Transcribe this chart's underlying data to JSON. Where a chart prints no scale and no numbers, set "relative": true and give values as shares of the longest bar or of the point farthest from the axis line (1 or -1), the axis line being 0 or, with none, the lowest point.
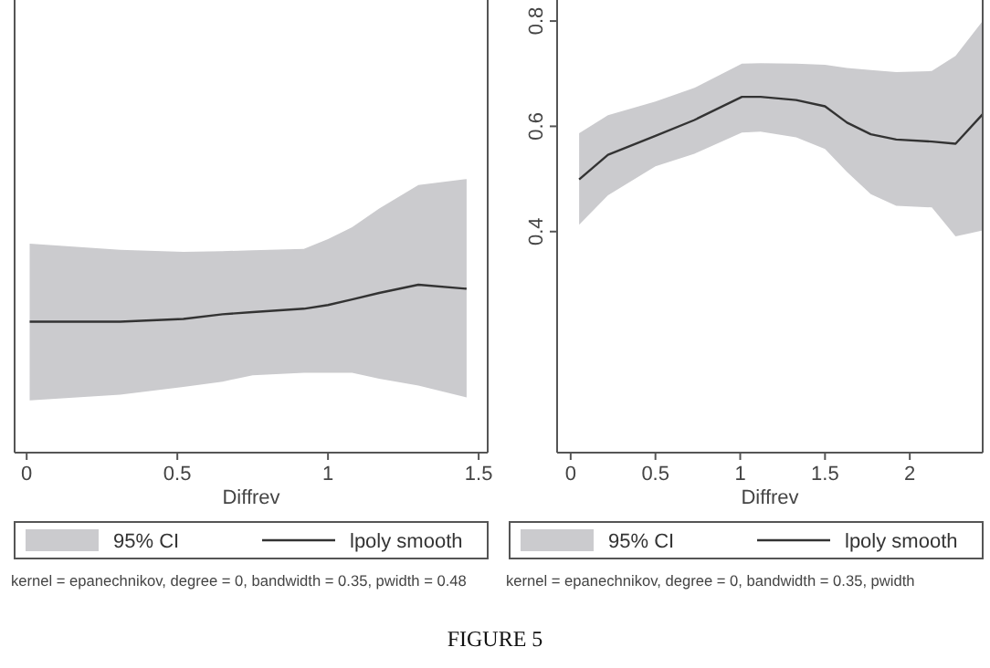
{
  "chart_data": [
    {
      "type": "line",
      "xlabel": "Diffrev",
      "relative": true,
      "tick_labels": "x",
      "xlim": [
        -0.04,
        1.53
      ],
      "xticks": [
        0,
        0.5,
        1,
        1.5
      ],
      "legend": "bottom",
      "x": [
        0.01,
        0.31,
        0.52,
        0.65,
        0.75,
        0.92,
        1.0,
        1.08,
        1.17,
        1.3,
        1.46
      ],
      "series": [
        {
          "name": "lpoly smooth",
          "color": "#333333",
          "values": [
            0.78,
            0.78,
            0.796,
            0.824,
            0.837,
            0.857,
            0.879,
            0.912,
            0.951,
            1.0,
            0.976
          ],
          "upper": [
            1.244,
            1.208,
            1.195,
            1.2,
            1.205,
            1.213,
            1.272,
            1.342,
            1.454,
            1.594,
            1.629
          ],
          "lower": [
            0.311,
            0.345,
            0.391,
            0.423,
            0.461,
            0.476,
            0.476,
            0.476,
            0.44,
            0.399,
            0.329
          ]
        }
      ],
      "annotations": [
        "95% CI",
        "kernel = epanechnikov, degree = 0, bandwidth = 0.35, pwidth = 0.48",
        "FIGURE 5"
      ]
    },
    {
      "type": "line",
      "xlabel": "Diffrev",
      "xlim": [
        -0.08,
        2.43
      ],
      "xticks": [
        0,
        0.5,
        1,
        1.5,
        2
      ],
      "ylim": [
        -0.02,
        0.84
      ],
      "yticks": [
        0.4,
        0.6,
        0.8
      ],
      "legend": "bottom",
      "x": [
        0.05,
        0.22,
        0.5,
        0.73,
        1.01,
        1.12,
        1.33,
        1.5,
        1.63,
        1.77,
        1.92,
        2.13,
        2.27,
        2.43
      ],
      "series": [
        {
          "name": "lpoly smooth",
          "color": "#333333",
          "values": [
            0.499,
            0.546,
            0.582,
            0.612,
            0.656,
            0.656,
            0.65,
            0.638,
            0.607,
            0.585,
            0.575,
            0.571,
            0.567,
            0.623
          ],
          "upper": [
            0.587,
            0.621,
            0.647,
            0.673,
            0.719,
            0.72,
            0.719,
            0.717,
            0.711,
            0.707,
            0.703,
            0.705,
            0.734,
            0.8
          ],
          "lower": [
            0.413,
            0.469,
            0.524,
            0.548,
            0.588,
            0.59,
            0.579,
            0.557,
            0.513,
            0.471,
            0.449,
            0.446,
            0.391,
            0.402
          ]
        }
      ],
      "annotations": [
        "95% CI",
        "kernel = epanechnikov, degree = 0, bandwidth = 0.35, pwidth"
      ]
    }
  ]
}
